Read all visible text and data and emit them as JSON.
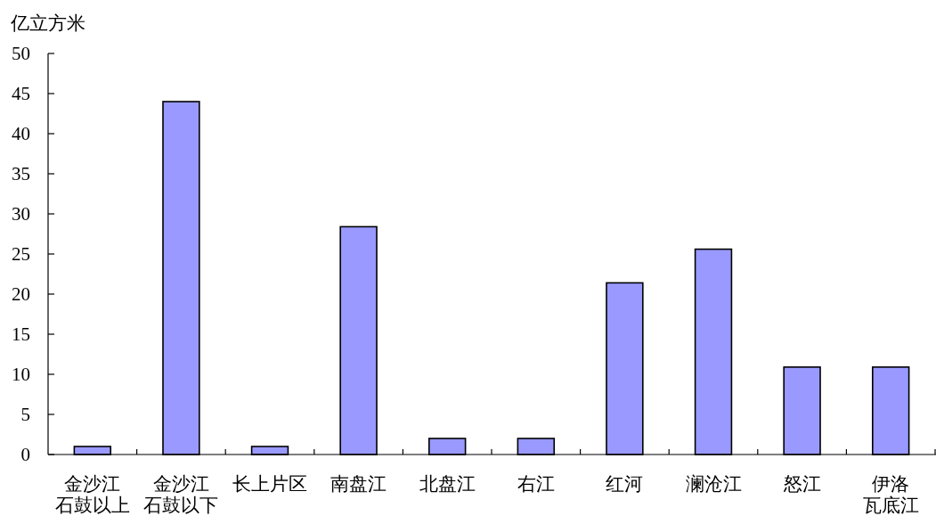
{
  "chart_data": {
    "type": "bar",
    "ylabel": "亿立方米",
    "categories": [
      "金沙江石鼓以上",
      "金沙江石鼓以下",
      "长上片区",
      "南盘江",
      "北盘江",
      "右江",
      "红河",
      "澜沧江",
      "怒江",
      "伊洛瓦底江"
    ],
    "values": [
      1,
      44,
      1,
      28.4,
      2,
      2,
      21.4,
      25.6,
      10.9,
      10.9
    ],
    "color": "#9999ff",
    "ylim": [
      0,
      50
    ],
    "yticks": [
      0,
      5,
      10,
      15,
      20,
      25,
      30,
      35,
      40,
      45,
      50
    ]
  }
}
